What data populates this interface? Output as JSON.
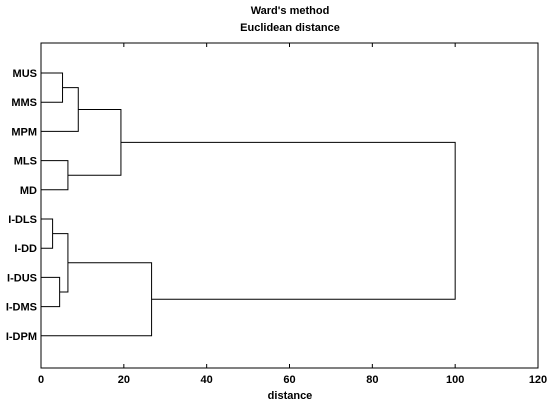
{
  "chart_data": {
    "type": "dendrogram",
    "title": "Ward's method",
    "subtitle": "Euclidean distance",
    "xlabel": "distance",
    "xlim": [
      0,
      120
    ],
    "xticks": [
      0,
      20,
      40,
      60,
      80,
      100,
      120
    ],
    "leaves": [
      "MUS",
      "MMS",
      "MPM",
      "MLS",
      "MD",
      "I-DLS",
      "I-DD",
      "I-DUS",
      "I-DMS",
      "I-DPM"
    ],
    "merges": [
      {
        "id": "c1",
        "left": "MUS",
        "right": "MMS",
        "height": 5.2
      },
      {
        "id": "c2",
        "left": "c1",
        "right": "MPM",
        "height": 9.0
      },
      {
        "id": "c3",
        "left": "MLS",
        "right": "MD",
        "height": 6.5
      },
      {
        "id": "c4",
        "left": "c2",
        "right": "c3",
        "height": 19.3
      },
      {
        "id": "c5",
        "left": "I-DLS",
        "right": "I-DD",
        "height": 2.8
      },
      {
        "id": "c6",
        "left": "I-DUS",
        "right": "I-DMS",
        "height": 4.5
      },
      {
        "id": "c7",
        "left": "c5",
        "right": "c6",
        "height": 6.5
      },
      {
        "id": "c8",
        "left": "c7",
        "right": "I-DPM",
        "height": 26.7
      },
      {
        "id": "c9",
        "left": "c4",
        "right": "c8",
        "height": 100.0
      }
    ]
  }
}
